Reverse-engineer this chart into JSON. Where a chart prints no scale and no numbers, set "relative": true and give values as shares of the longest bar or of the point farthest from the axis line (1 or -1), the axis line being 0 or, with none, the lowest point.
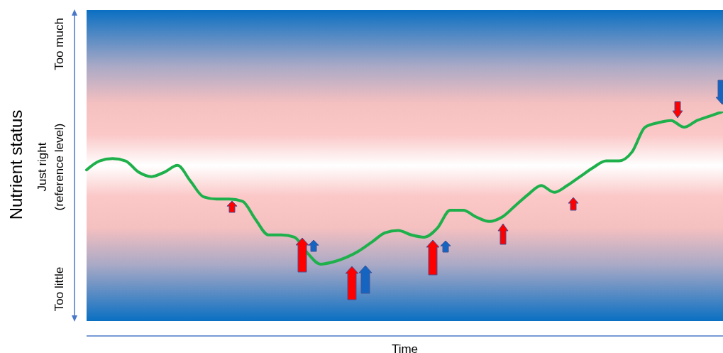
{
  "chart_data": {
    "type": "line",
    "relative": true,
    "xlabel": "Time",
    "ylabel": "Nutrient status",
    "annotations": [
      "Too much",
      "Just right\n(reference level)",
      "Too little"
    ],
    "categories": [
      null,
      null,
      null,
      null,
      null,
      null,
      null,
      null,
      null,
      null,
      null,
      null,
      null,
      null,
      null,
      null,
      null,
      null,
      null,
      null,
      null,
      null,
      null,
      null,
      null,
      null,
      null,
      null,
      null,
      null,
      null,
      null,
      null,
      null,
      null,
      null,
      null,
      null,
      null,
      null,
      null,
      null,
      null,
      null,
      null,
      null,
      null,
      null,
      null,
      null
    ],
    "series": [
      {
        "color": "#1db04b",
        "values": [
          0.74,
          0.78,
          0.79,
          0.78,
          0.73,
          0.71,
          0.73,
          0.76,
          0.69,
          0.62,
          0.61,
          0.61,
          0.6,
          0.52,
          0.45,
          0.45,
          0.44,
          0.37,
          0.32,
          0.33,
          0.35,
          0.38,
          0.42,
          0.46,
          0.47,
          0.45,
          0.44,
          0.48,
          0.56,
          0.56,
          0.53,
          0.51,
          0.53,
          0.58,
          0.63,
          0.67,
          0.64,
          0.67,
          0.71,
          0.75,
          0.78,
          0.78,
          0.82,
          0.93,
          0.95,
          0.96,
          0.93,
          0.96,
          0.98,
          1
        ]
      }
    ],
    "marker": "none",
    "line_style": "solid"
  }
}
